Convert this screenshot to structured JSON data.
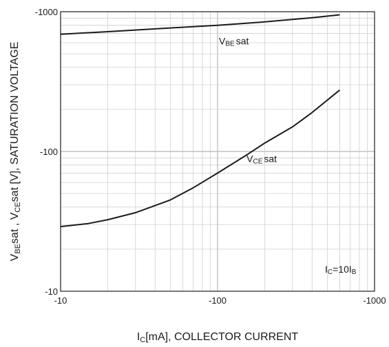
{
  "chart_data": {
    "type": "line",
    "xlabel": {
      "main": "I",
      "sub": "C",
      "rest": "[mA], COLLECTOR CURRENT"
    },
    "ylabel": {
      "p1": "V",
      "s1": "BE",
      "p2": "sat  , V",
      "s2": "CE",
      "p3": "sat  [V], SATURATION VOLTAGE"
    },
    "x_scale": "log",
    "y_scale": "log",
    "xlim": [
      -10,
      -1000
    ],
    "ylim": [
      -10,
      -1000
    ],
    "x_ticks": [
      {
        "value": -10,
        "label": "-10"
      },
      {
        "value": -100,
        "label": "-100"
      },
      {
        "value": -1000,
        "label": "-1000"
      }
    ],
    "y_ticks": [
      {
        "value": -10,
        "label": "-10"
      },
      {
        "value": -100,
        "label": "-100"
      },
      {
        "value": -1000,
        "label": "-1000"
      }
    ],
    "grid": true,
    "series": [
      {
        "name_main": "V",
        "name_sub": "BE",
        "name_rest": "sat",
        "label_at": {
          "x": -100,
          "y": -800
        },
        "x": [
          -10,
          -20,
          -50,
          -100,
          -200,
          -400,
          -600
        ],
        "y": [
          -690,
          -720,
          -765,
          -800,
          -845,
          -905,
          -950
        ]
      },
      {
        "name_main": "V",
        "name_sub": "CE",
        "name_rest": "sat",
        "label_at": {
          "x": -150,
          "y": -88
        },
        "x": [
          -10,
          -15,
          -20,
          -30,
          -50,
          -70,
          -100,
          -150,
          -200,
          -300,
          -400,
          -600
        ],
        "y": [
          -29,
          -30.5,
          -32.5,
          -36.5,
          -45,
          -55,
          -70,
          -93,
          -115,
          -150,
          -190,
          -275
        ]
      }
    ],
    "annotation": {
      "main": "I",
      "sub": "C",
      "rest": "=10I",
      "sub2": "B"
    }
  }
}
